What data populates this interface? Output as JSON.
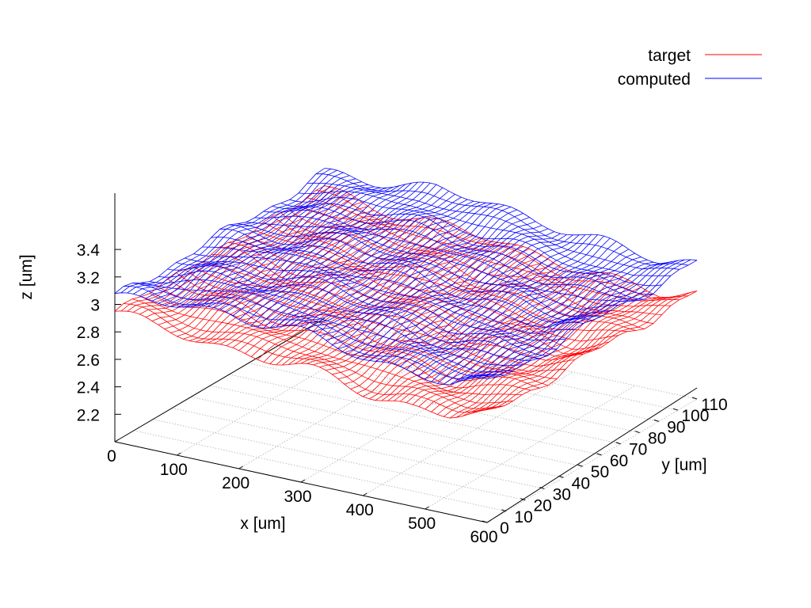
{
  "chart_data": {
    "type": "surface3d",
    "xlabel": "x [um]",
    "ylabel": "y [um]",
    "zlabel": "z [um]",
    "xlim": [
      0,
      600
    ],
    "ylim": [
      0,
      110
    ],
    "zlim": [
      2.0,
      3.4
    ],
    "grid": true,
    "legend_position": "top-right",
    "x_ticks": [
      "0",
      "100",
      "200",
      "300",
      "400",
      "500",
      "600"
    ],
    "y_ticks": [
      "0",
      "10",
      "20",
      "30",
      "40",
      "50",
      "60",
      "70",
      "80",
      "90",
      "100",
      "110"
    ],
    "z_ticks": [
      "2.2",
      "2.4",
      "2.6",
      "2.8",
      "3",
      "3.2",
      "3.4"
    ],
    "series": [
      {
        "name": "target",
        "color": "#ff0000",
        "grid_x": [
          0,
          60,
          120,
          180,
          240,
          300,
          360,
          420,
          480,
          540,
          600
        ],
        "grid_y": [
          0,
          11,
          22,
          33,
          44,
          55,
          66,
          77,
          88,
          99,
          110
        ],
        "z_at_x": [
          2.95,
          2.9,
          2.88,
          2.86,
          2.85,
          2.83,
          2.8,
          2.75,
          2.72,
          2.72,
          2.78
        ]
      },
      {
        "name": "computed",
        "color": "#0000ff",
        "grid_x": [
          0,
          60,
          120,
          180,
          240,
          300,
          360,
          420,
          480,
          540,
          600
        ],
        "grid_y": [
          0,
          11,
          22,
          33,
          44,
          55,
          66,
          77,
          88,
          99,
          110
        ],
        "z_at_x": [
          3.05,
          3.08,
          3.1,
          3.12,
          3.1,
          3.08,
          3.05,
          3.0,
          2.98,
          2.95,
          3.0
        ]
      }
    ]
  }
}
